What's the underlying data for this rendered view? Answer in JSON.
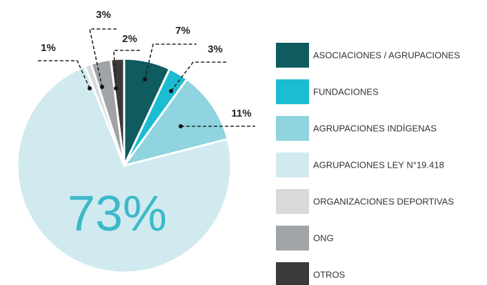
{
  "chart_data": {
    "type": "pie",
    "categories": [
      "ASOCIACIONES / AGRUPACIONES",
      "FUNDACIONES",
      "AGRUPACIONES INDÍGENAS",
      "AGRUPACIONES LEY N°19.418",
      "ORGANIZACIONES DEPORTIVAS",
      "ONG",
      "OTROS"
    ],
    "values": [
      7,
      3,
      11,
      73,
      1,
      3,
      2
    ],
    "value_labels": [
      "7%",
      "3%",
      "11%",
      "73%",
      "1%",
      "3%",
      "2%"
    ],
    "colors": [
      "#0f5b5f",
      "#1cbdd1",
      "#8fd4df",
      "#d0eaf0",
      "#d8d9da",
      "#a1a4a6",
      "#3a3a3a"
    ],
    "legend": "right"
  }
}
